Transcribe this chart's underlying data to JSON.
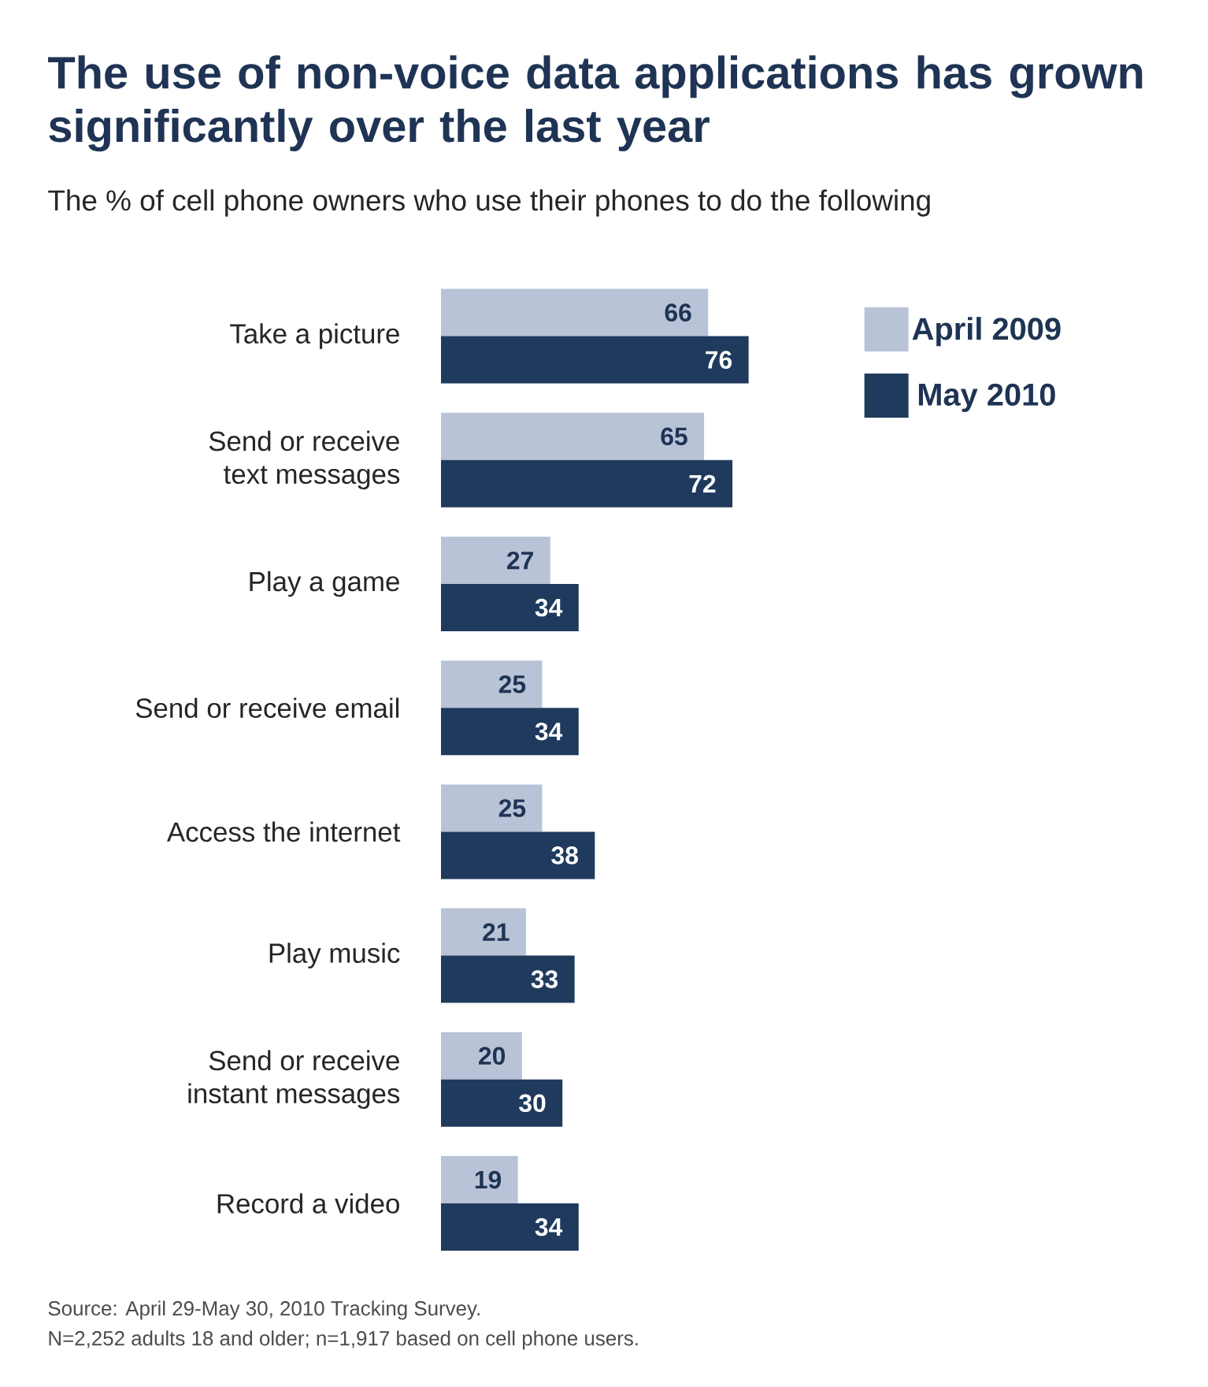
{
  "chart_data": {
    "type": "bar",
    "orientation": "horizontal",
    "title": "The use of non-voice data applications has grown significantly over the last year",
    "subtitle": "The % of cell phone owners who use their phones to do the following",
    "categories": [
      "Take a picture",
      "Send or receive text messages",
      "Play a game",
      "Send or receive email",
      "Access the internet",
      "Play music",
      "Send or receive instant messages",
      "Record a video"
    ],
    "series": [
      {
        "name": "April 2009",
        "color": "#b9c3d7",
        "values": [
          66,
          65,
          27,
          25,
          25,
          21,
          20,
          19
        ]
      },
      {
        "name": "May 2010",
        "color": "#1f3a5d",
        "values": [
          76,
          72,
          34,
          34,
          38,
          33,
          30,
          34
        ]
      }
    ],
    "data_labels": true,
    "legend": "right",
    "annotations": [
      "Source: April 29-May 30, 2010 Tracking Survey.",
      "N=2,252 adults 18 and older; n=1,917 based on cell phone users."
    ]
  }
}
